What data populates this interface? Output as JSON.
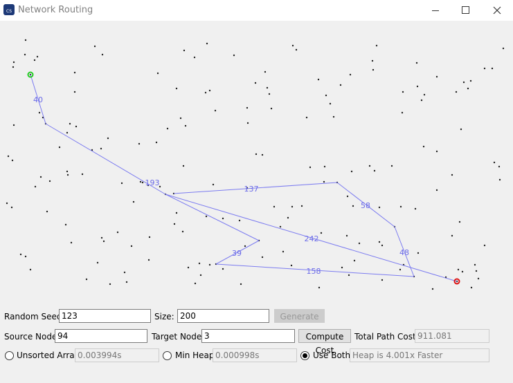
{
  "window": {
    "title": "Network Routing"
  },
  "canvas": {
    "edge_labels": [
      "40",
      "193",
      "137",
      "58",
      "48",
      "39",
      "158",
      "242"
    ]
  },
  "form": {
    "random_seed": {
      "label": "Random Seed:",
      "value": "123"
    },
    "size": {
      "label": "Size:",
      "value": "200"
    },
    "generate": "Generate",
    "source_node": {
      "label": "Source Node:",
      "value": "94"
    },
    "target_node": {
      "label": "Target Node:",
      "value": "3"
    },
    "compute_cost": "Compute Cost",
    "total_path_cost": {
      "label": "Total Path Cost:",
      "value": "911.081"
    },
    "unsorted_array": {
      "label": "Unsorted Array",
      "value": "0.003994s"
    },
    "min_heap": {
      "label": "Min Heap",
      "value": "0.000998s"
    },
    "use_both": {
      "label": "Use Both",
      "value": "Heap is 4.001x Faster"
    }
  }
}
